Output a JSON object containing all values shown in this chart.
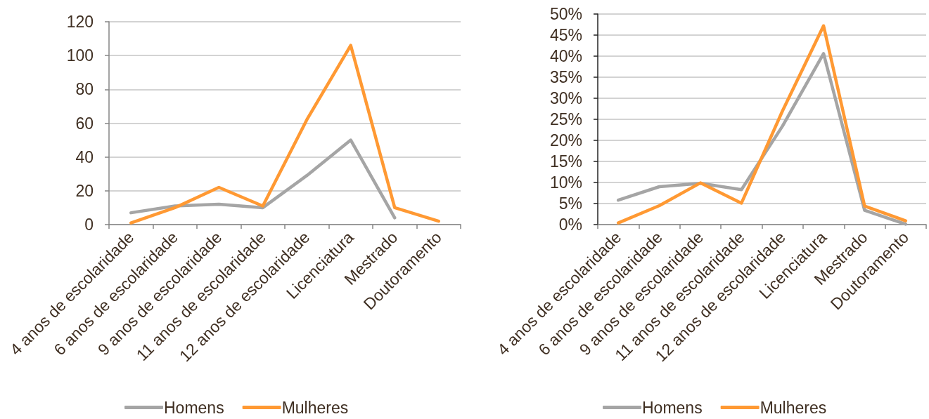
{
  "chart_data": [
    {
      "type": "line",
      "categories": [
        "4 anos de escolaridade",
        "6 anos de escolaridade",
        "9 anos de escolaridade",
        "11 anos de escolaridade",
        "12 anos de escolaridade",
        "Licenciatura",
        "Mestrado",
        "Doutoramento"
      ],
      "series": [
        {
          "name": "Homens",
          "color": "#a5a5a5",
          "values": [
            7,
            11,
            12,
            10,
            29,
            50,
            4,
            null
          ]
        },
        {
          "name": "Mulheres",
          "color": "#ff9933",
          "values": [
            1,
            10,
            22,
            11,
            62,
            106,
            10,
            2
          ]
        }
      ],
      "ylim": [
        0,
        120
      ],
      "yticks": [
        0,
        20,
        40,
        60,
        80,
        100,
        120
      ],
      "grid": "y",
      "legend": "bottom",
      "marker": "none",
      "line_style": "solid"
    },
    {
      "type": "line",
      "categories": [
        "4 anos de escolaridade",
        "6 anos de escolaridade",
        "9 anos de escolaridade",
        "11 anos de escolaridade",
        "12 anos de escolaridade",
        "Licenciatura",
        "Mestrado",
        "Doutoramento"
      ],
      "series": [
        {
          "name": "Homens",
          "color": "#a5a5a5",
          "values": [
            5.8,
            9.0,
            9.8,
            8.3,
            23.4,
            40.6,
            3.4,
            0.1
          ]
        },
        {
          "name": "Mulheres",
          "color": "#ff9933",
          "values": [
            0.4,
            4.5,
            9.9,
            5.1,
            27.0,
            47.2,
            4.4,
            0.9
          ]
        }
      ],
      "ylim": [
        0,
        50
      ],
      "yticks": [
        {
          "value": 0,
          "label": "0%"
        },
        {
          "value": 5,
          "label": "5%"
        },
        {
          "value": 10,
          "label": "10%"
        },
        {
          "value": 15,
          "label": "15%"
        },
        {
          "value": 20,
          "label": "20%"
        },
        {
          "value": 25,
          "label": "25%"
        },
        {
          "value": 30,
          "label": "30%"
        },
        {
          "value": 35,
          "label": "35%"
        },
        {
          "value": 40,
          "label": "40%"
        },
        {
          "value": 45,
          "label": "45%"
        },
        {
          "value": 50,
          "label": "50%"
        }
      ],
      "grid": "y",
      "legend": "bottom",
      "marker": "none",
      "line_style": "solid"
    }
  ]
}
